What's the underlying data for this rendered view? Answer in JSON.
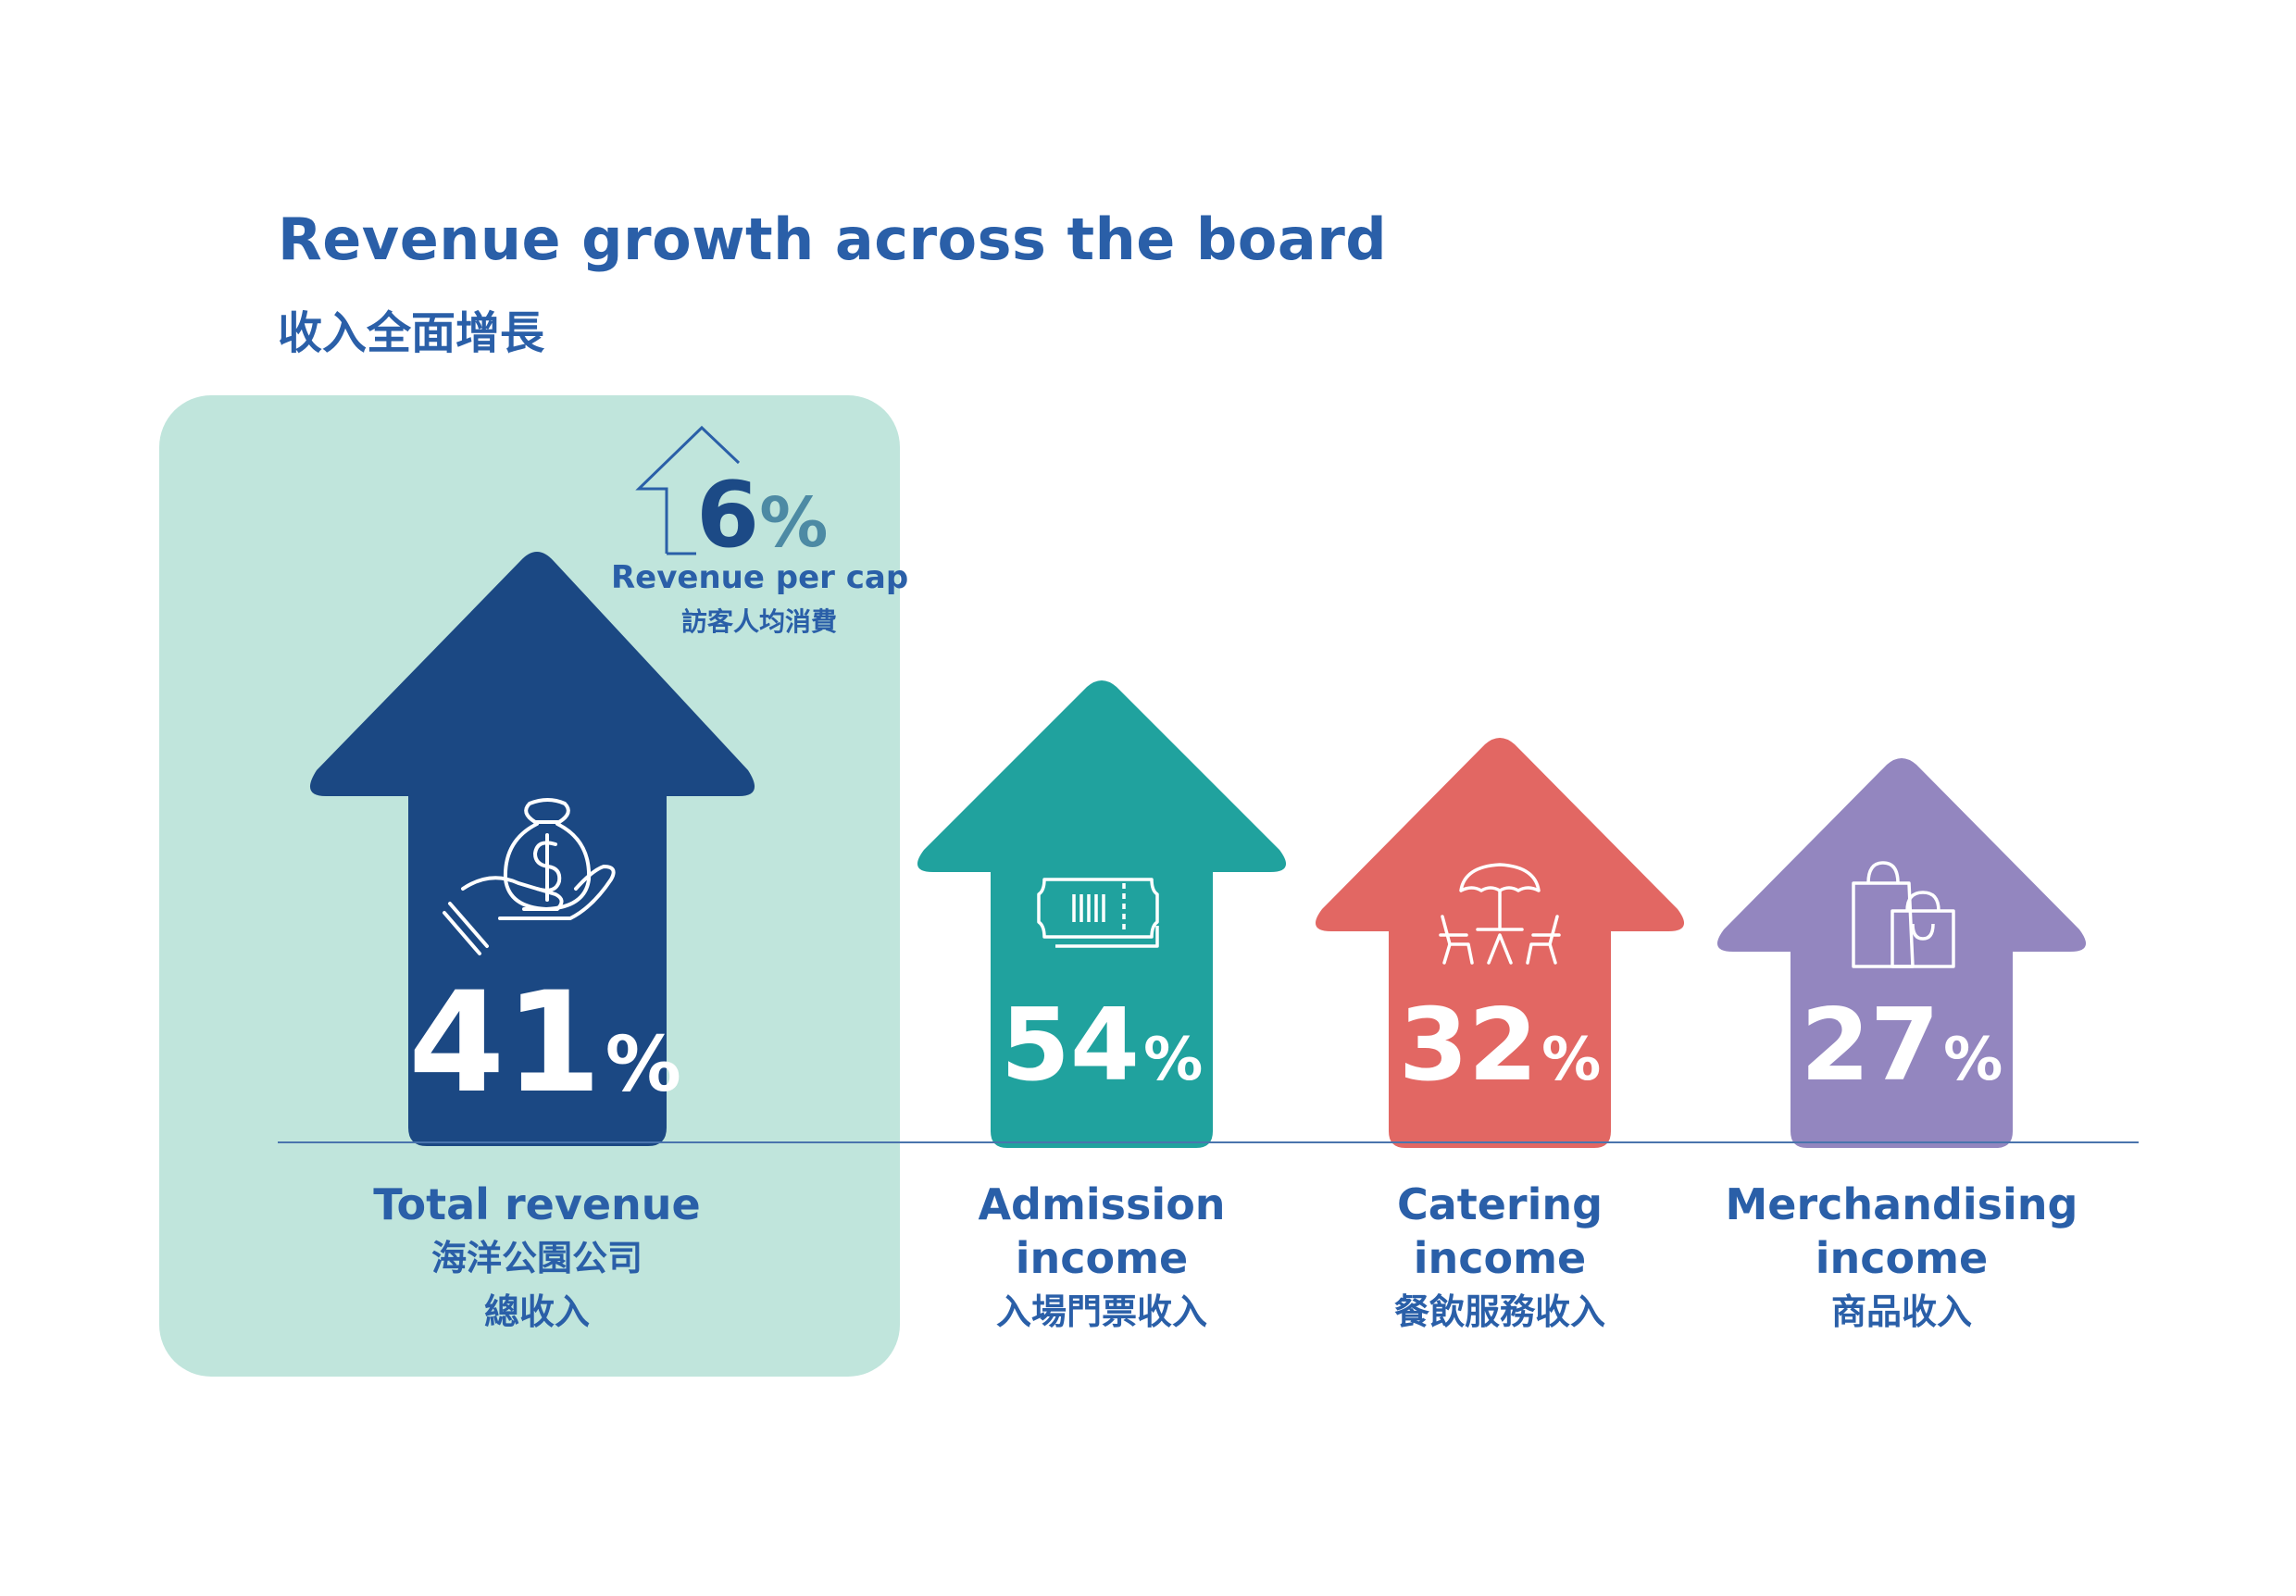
{
  "title": "Revenue growth across the board",
  "subtitle": "收入全面增長",
  "callout": {
    "value": "6",
    "unit": "%",
    "label_en": "Revenue per cap",
    "label_zh": "訪客人均消費"
  },
  "colors": {
    "title": "#2a5fa8",
    "panel": "#c0e5dc",
    "total": "#1b4883",
    "admission": "#20a29e",
    "catering": "#e26763",
    "merchandising": "#9386bf"
  },
  "items": [
    {
      "value": "41",
      "unit": "%",
      "label_en": "Total revenue",
      "label_zh": "海洋公園公司",
      "label_zh2": "總收入",
      "icon": "money-bag-hand-icon"
    },
    {
      "value": "54",
      "unit": "%",
      "label_en": "Admission",
      "label_en2": "income",
      "label_zh": "入場門票收入",
      "icon": "ticket-icon"
    },
    {
      "value": "32",
      "unit": "%",
      "label_en": "Catering",
      "label_en2": "income",
      "label_zh": "餐飲服務收入",
      "icon": "dining-table-icon"
    },
    {
      "value": "27",
      "unit": "%",
      "label_en": "Merchandising",
      "label_en2": "income",
      "label_zh": "商品收入",
      "icon": "shopping-bag-icon"
    }
  ],
  "chart_data": {
    "type": "bar",
    "title": "Revenue growth across the board",
    "subtitle": "收入全面增長",
    "categories": [
      "Total revenue",
      "Admission income",
      "Catering income",
      "Merchandising income"
    ],
    "values": [
      41,
      54,
      32,
      27
    ],
    "unit": "%",
    "annotations": [
      {
        "label": "Revenue per cap",
        "value": 6,
        "unit": "%"
      }
    ]
  }
}
